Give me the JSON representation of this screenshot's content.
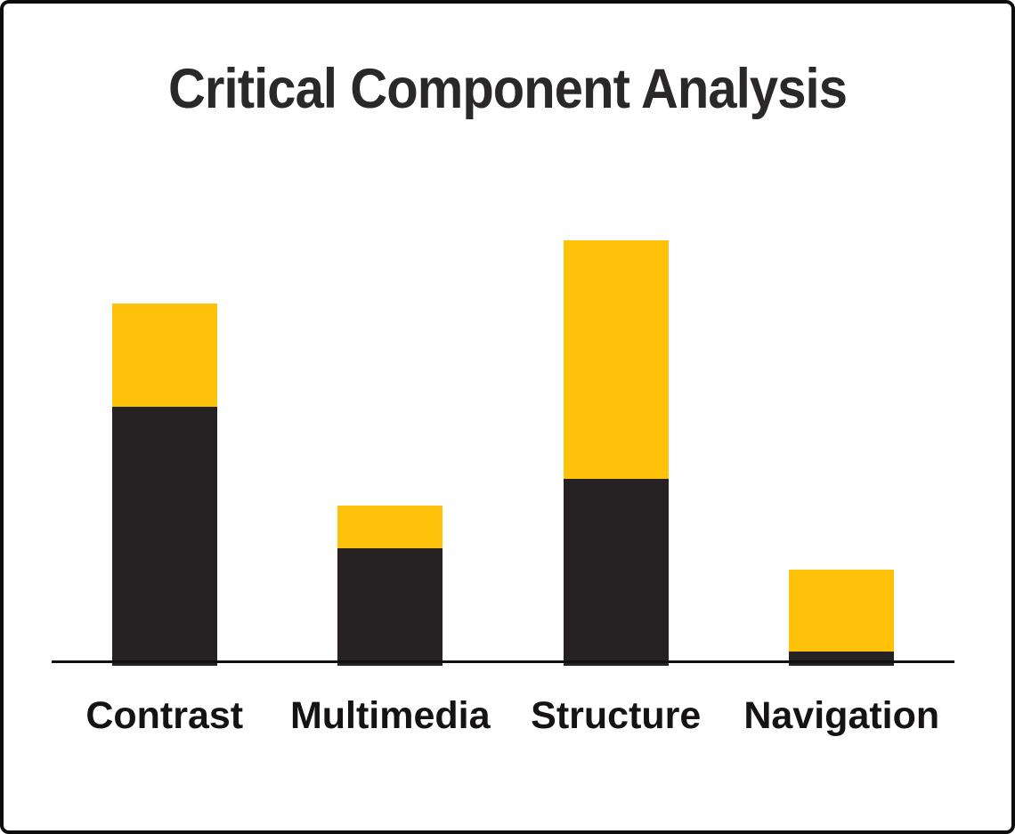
{
  "window": {
    "background": "#ffffff",
    "frame_border_color": "#0c0c0c"
  },
  "chart_data": {
    "type": "bar",
    "variant": "stacked-vertical",
    "title": "Critical Component Analysis",
    "title_color": "#2b2829",
    "categories": [
      "Contrast",
      "Multimedia",
      "Structure",
      "Navigation"
    ],
    "series": [
      {
        "name": "dark-bottom-segment",
        "color": "#262223",
        "values": [
          291,
          132,
          210,
          16
        ]
      },
      {
        "name": "gold-top-segment",
        "color": "#ffc20a",
        "values": [
          116,
          48,
          268,
          92
        ]
      }
    ],
    "stack_totals": [
      407,
      180,
      478,
      108
    ],
    "value_unit": "pixel height (chart displays no numeric y-axis scale)",
    "xlabel": "",
    "ylabel": "",
    "axis": {
      "baseline_shown": true,
      "baseline_color": "#111111",
      "y_ticks": false,
      "gridlines": false
    },
    "legend_position": "none",
    "category_label_color": "#161314"
  }
}
